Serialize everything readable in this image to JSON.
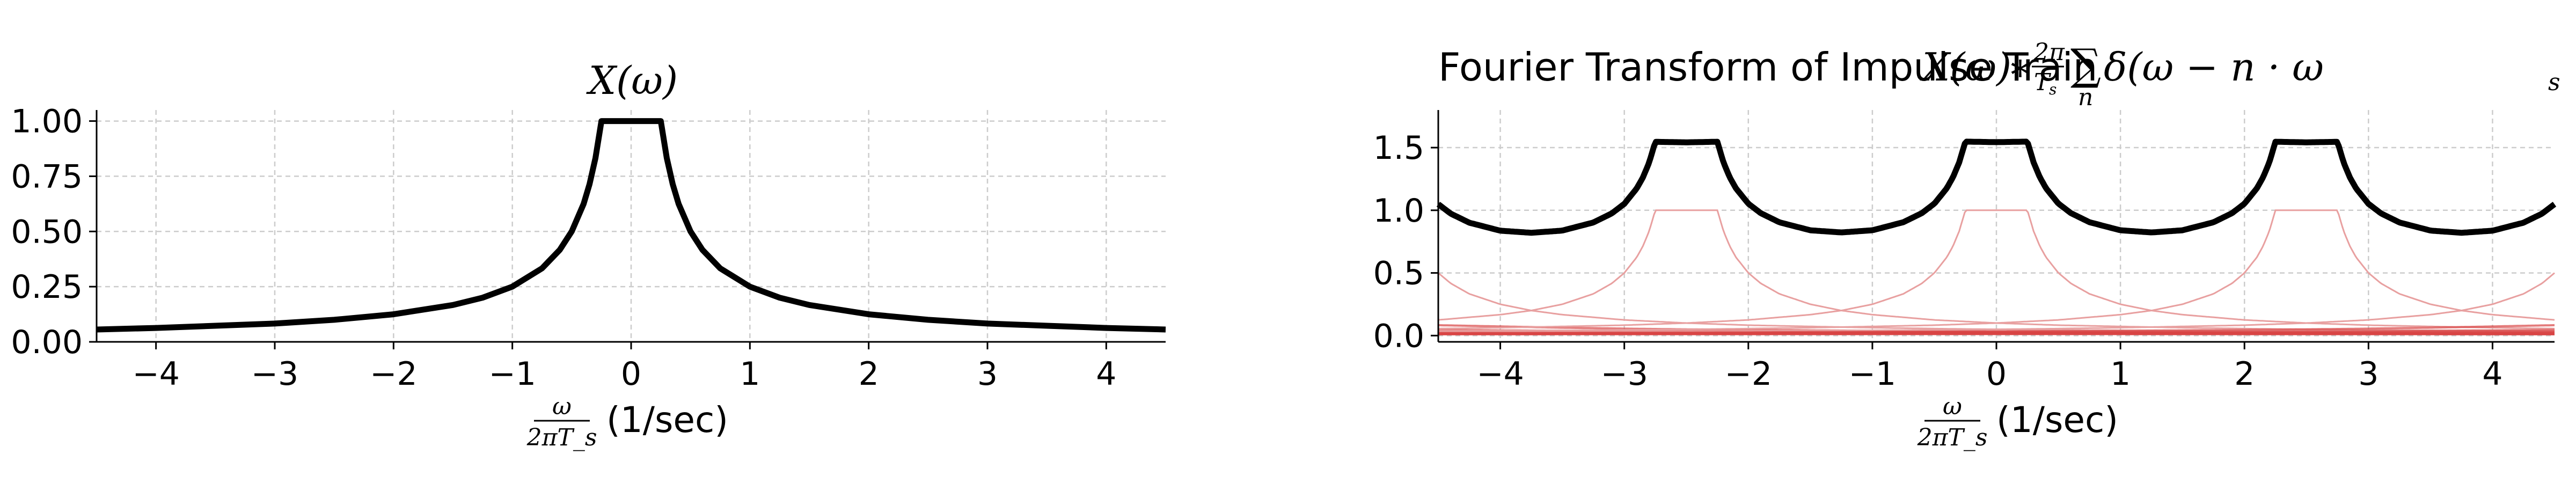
{
  "chart_data": [
    {
      "type": "line",
      "title": "X(ω)",
      "xlabel": "(1/sec)",
      "xlabel_fraction": {
        "numerator": "ω",
        "denominator": "2πT_s"
      },
      "xlim": [
        -4.5,
        4.5
      ],
      "ylim": [
        0,
        1.05
      ],
      "xticks": [
        -4,
        -3,
        -2,
        -1,
        0,
        1,
        2,
        3,
        4
      ],
      "xtick_labels": [
        "−4",
        "−3",
        "−2",
        "−1",
        "0",
        "1",
        "2",
        "3",
        "4"
      ],
      "yticks": [
        0.0,
        0.25,
        0.5,
        0.75,
        1.0
      ],
      "ytick_labels": [
        "0.00",
        "0.25",
        "0.50",
        "0.75",
        "1.00"
      ],
      "grid": true,
      "series": [
        {
          "color": "#000000",
          "x": [
            -4.5,
            -4,
            -3.5,
            -3,
            -2.5,
            -2,
            -1.5,
            -1.25,
            -1,
            -0.75,
            -0.6,
            -0.5,
            -0.4,
            -0.35,
            -0.3,
            -0.25,
            0.25,
            0.3,
            0.35,
            0.4,
            0.5,
            0.6,
            0.75,
            1,
            1.25,
            1.5,
            2,
            2.5,
            3,
            3.5,
            4,
            4.5
          ],
          "y": [
            0.056,
            0.063,
            0.073,
            0.083,
            0.1,
            0.125,
            0.167,
            0.2,
            0.25,
            0.333,
            0.417,
            0.5,
            0.625,
            0.714,
            0.833,
            1.0,
            1.0,
            0.833,
            0.714,
            0.625,
            0.5,
            0.417,
            0.333,
            0.25,
            0.2,
            0.167,
            0.125,
            0.1,
            0.083,
            0.073,
            0.063,
            0.056
          ]
        }
      ]
    },
    {
      "type": "line",
      "title": "Fourier Transform of Impulse Train",
      "title_math": "X(ω) * (2π/T_s) Σ_n δ(ω − n · ω_s)",
      "xlabel": "(1/sec)",
      "xlabel_fraction": {
        "numerator": "ω",
        "denominator": "2πT_s"
      },
      "xlim": [
        -4.5,
        4.5
      ],
      "ylim": [
        -0.05,
        1.8
      ],
      "xticks": [
        -4,
        -3,
        -2,
        -1,
        0,
        1,
        2,
        3,
        4
      ],
      "xtick_labels": [
        "−4",
        "−3",
        "−2",
        "−1",
        "0",
        "1",
        "2",
        "3",
        "4"
      ],
      "yticks": [
        0.0,
        0.5,
        1.0,
        1.5
      ],
      "ytick_labels": [
        "0.0",
        "0.5",
        "1.0",
        "1.5"
      ],
      "grid": true,
      "period": 2.5,
      "shifted_copies_color": "#e8a0a0",
      "sum_color": "#000000",
      "shifts": [
        -20,
        -17.5,
        -15,
        -12.5,
        -10,
        -7.5,
        -5,
        -2.5,
        0,
        2.5,
        5,
        7.5,
        10,
        12.5,
        15,
        17.5,
        20
      ]
    }
  ]
}
